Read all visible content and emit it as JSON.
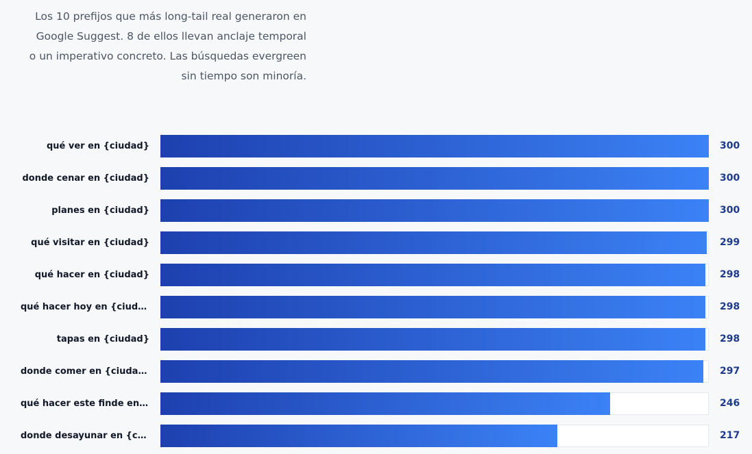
{
  "intro_text": "Los 10 prefijos que más long-tail real generaron en Google Suggest. 8 de ellos llevan anclaje temporal o un imperativo concreto. Las búsquedas evergreen sin tiempo son minoría.",
  "colors": {
    "bar_start": "#1e40af",
    "bar_end": "#3b82f6",
    "value_text": "#1e3a8a",
    "track": "#ffffff"
  },
  "chart_data": {
    "type": "bar",
    "orientation": "horizontal",
    "xlim": [
      0,
      300
    ],
    "grid": false,
    "categories": [
      "qué ver en {ciudad}",
      "donde cenar en {ciudad}",
      "planes en {ciudad}",
      "qué visitar en {ciudad}",
      "qué hacer en {ciudad}",
      "qué hacer hoy en {ciudad}",
      "tapas en {ciudad}",
      "donde comer en {ciudad}",
      "qué hacer este finde en {…",
      "donde desayunar en {ciu…"
    ],
    "values": [
      300,
      300,
      300,
      299,
      298,
      298,
      298,
      297,
      246,
      217
    ]
  }
}
